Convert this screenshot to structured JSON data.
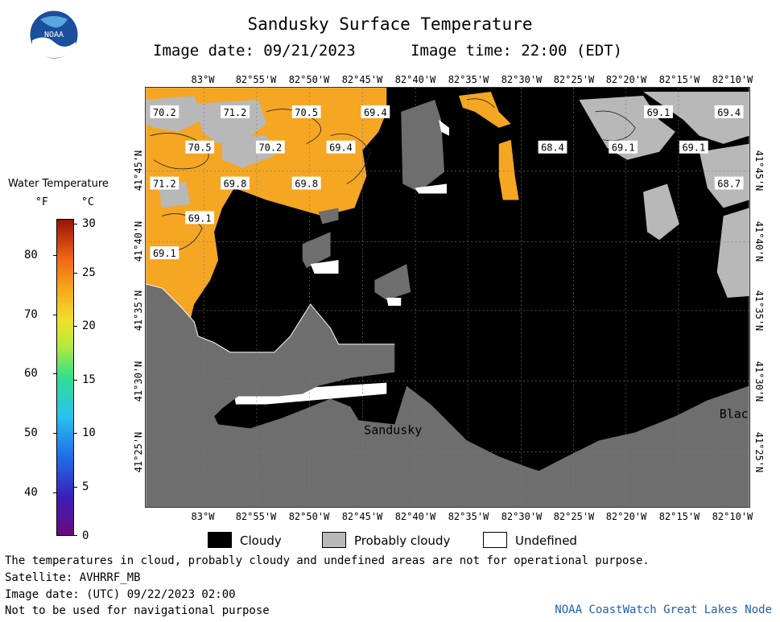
{
  "header": {
    "title": "Sandusky Surface Temperature",
    "image_date": "Image date: 09/21/2023",
    "image_time": "Image time: 22:00 (EDT)"
  },
  "logo": {
    "text": "NOAA"
  },
  "legend": {
    "title": "Water Temperature",
    "unit_f": "°F",
    "unit_c": "°C",
    "f_ticks": [
      "80",
      "70",
      "60",
      "50",
      "40"
    ],
    "c_ticks": [
      "30",
      "25",
      "20",
      "15",
      "10",
      "5",
      "0"
    ],
    "f_range": [
      32,
      86
    ],
    "c_range": [
      0,
      30
    ]
  },
  "map": {
    "lon_labels": [
      "83°W",
      "82°55'W",
      "82°50'W",
      "82°45'W",
      "82°40'W",
      "82°35'W",
      "82°30'W",
      "82°25'W",
      "82°20'W",
      "82°15'W",
      "82°10'W"
    ],
    "lat_labels": [
      "41°45'N",
      "41°40'N",
      "41°35'N",
      "41°30'N",
      "41°25'N"
    ],
    "temperature_labels": [
      "70.2",
      "71.2",
      "70.5",
      "69.4",
      "70.5",
      "70.2",
      "69.4",
      "71.2",
      "69.8",
      "69.8",
      "69.1",
      "69.1",
      "68.4",
      "69.1",
      "69.1",
      "69.1",
      "69.4",
      "68.7"
    ],
    "place_labels": [
      "Sandusky",
      "Blac"
    ]
  },
  "cloud_legend": {
    "cloudy": "Cloudy",
    "probably_cloudy": "Probably cloudy",
    "undefined": "Undefined"
  },
  "footer": {
    "disclaimer": "The temperatures in cloud, probably cloudy and undefined areas are not for operational purpose.",
    "satellite": "Satellite: AVHRRF_MB",
    "utc_date": "Image date: (UTC) 09/22/2023  02:00",
    "nav_note": "Not to be used for navigational purpose",
    "credit": "NOAA CoastWatch Great Lakes Node"
  },
  "colors": {
    "water_warm": "#f5a623",
    "cloudy": "#000000",
    "probably_cloudy": "#b8b8b8",
    "land": "#6e6e6e",
    "undefined": "#ffffff",
    "credit": "#1f5fb0"
  }
}
